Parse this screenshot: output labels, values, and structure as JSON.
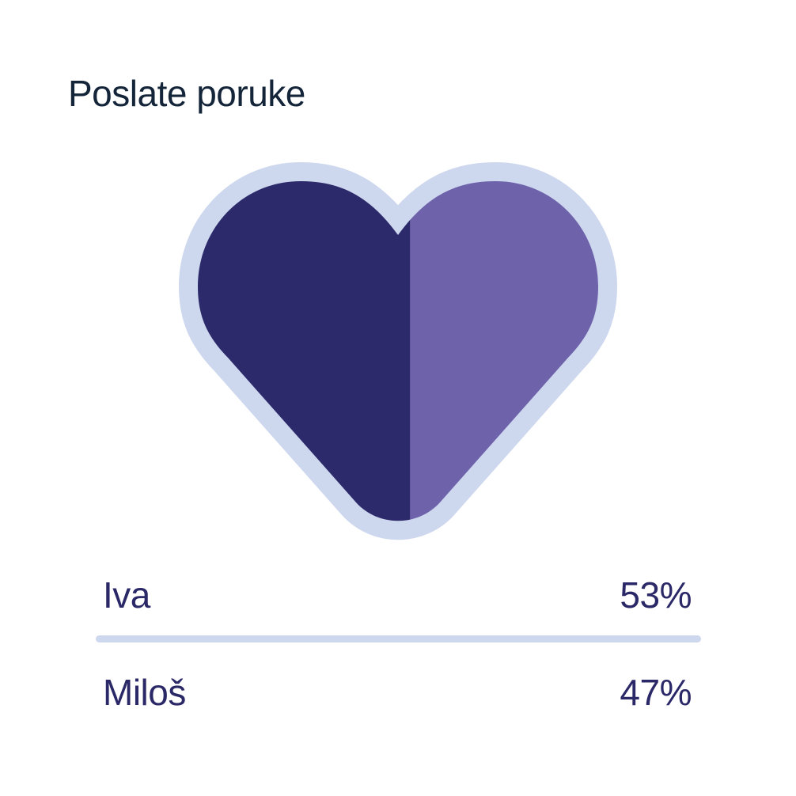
{
  "chart_data": {
    "type": "pie",
    "shape": "heart",
    "title": "Poslate poruke",
    "series": [
      {
        "name": "Iva",
        "value": 53,
        "label": "53%",
        "color": "#2c2a6b"
      },
      {
        "name": "Miloš",
        "value": 47,
        "label": "47%",
        "color": "#6e63ab"
      }
    ],
    "outline_color": "#cdd7ee"
  }
}
